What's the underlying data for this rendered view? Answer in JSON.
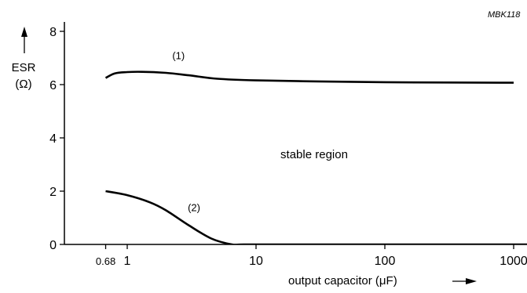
{
  "chart_data": {
    "type": "line",
    "figure_id": "MBK118",
    "title": "",
    "ylabel": {
      "line1": "ESR",
      "line2": "(Ω)"
    },
    "xlabel": "output capacitor (μF)",
    "x_scale": "log",
    "xlim": [
      0.68,
      1400
    ],
    "ylim": [
      0,
      8
    ],
    "x_ticks": [
      {
        "value": 0.68,
        "label": "0.68"
      },
      {
        "value": 1,
        "label": "1"
      },
      {
        "value": 10,
        "label": "10"
      },
      {
        "value": 100,
        "label": "100"
      },
      {
        "value": 1000,
        "label": "1000"
      }
    ],
    "y_ticks": [
      {
        "value": 0,
        "label": "0"
      },
      {
        "value": 2,
        "label": "2"
      },
      {
        "value": 4,
        "label": "4"
      },
      {
        "value": 6,
        "label": "6"
      },
      {
        "value": 8,
        "label": "8"
      }
    ],
    "series": [
      {
        "name": "(1)",
        "x": [
          0.68,
          0.8,
          1.0,
          1.3,
          2.0,
          3.0,
          5.0,
          10,
          30,
          100,
          300,
          1000
        ],
        "y": [
          6.25,
          6.42,
          6.47,
          6.48,
          6.44,
          6.35,
          6.22,
          6.16,
          6.12,
          6.09,
          6.08,
          6.07
        ]
      },
      {
        "name": "(2)",
        "x": [
          0.68,
          1.0,
          1.5,
          2.0,
          3.0,
          4.5,
          6.5,
          8,
          20,
          100,
          1000,
          1400
        ],
        "y": [
          2.0,
          1.85,
          1.58,
          1.28,
          0.72,
          0.22,
          0.0,
          0.0,
          0.0,
          0.0,
          0.0,
          0.0
        ]
      }
    ],
    "annotation": "stable region",
    "grid": false,
    "legend": "none"
  }
}
